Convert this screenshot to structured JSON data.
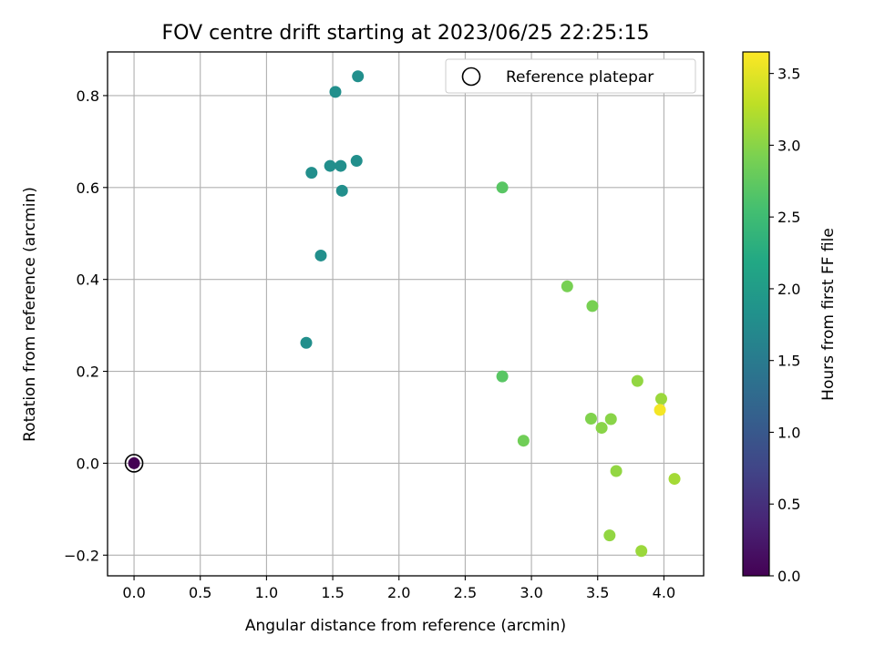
{
  "chart_data": {
    "type": "scatter",
    "title": "FOV centre drift starting at 2023/06/25 22:25:15",
    "xlabel": "Angular distance from reference (arcmin)",
    "ylabel": "Rotation from reference (arcmin)",
    "xlim": [
      -0.2,
      4.3
    ],
    "ylim": [
      -0.245,
      0.895
    ],
    "xticks": [
      0.0,
      0.5,
      1.0,
      1.5,
      2.0,
      2.5,
      3.0,
      3.5,
      4.0
    ],
    "xtick_labels": [
      "0.0",
      "0.5",
      "1.0",
      "1.5",
      "2.0",
      "2.5",
      "3.0",
      "3.5",
      "4.0"
    ],
    "yticks": [
      -0.2,
      0.0,
      0.2,
      0.4,
      0.6,
      0.8
    ],
    "ytick_labels": [
      "−0.2",
      "0.0",
      "0.2",
      "0.4",
      "0.6",
      "0.8"
    ],
    "grid": true,
    "legend": {
      "label": "Reference platepar",
      "placement": "top-right"
    },
    "reference_point": {
      "x": 0.0,
      "y": 0.0
    },
    "colorbar": {
      "label": "Hours from first FF file",
      "colormap": "viridis",
      "range": [
        0.0,
        3.65
      ],
      "ticks": [
        0.0,
        0.5,
        1.0,
        1.5,
        2.0,
        2.5,
        3.0,
        3.5
      ],
      "tick_labels": [
        "0.0",
        "0.5",
        "1.0",
        "1.5",
        "2.0",
        "2.5",
        "3.0",
        "3.5"
      ]
    },
    "points": [
      {
        "x": 0.0,
        "y": 0.0,
        "hours": 0.0
      },
      {
        "x": 1.3,
        "y": 0.262,
        "hours": 1.8
      },
      {
        "x": 1.41,
        "y": 0.452,
        "hours": 1.8
      },
      {
        "x": 1.34,
        "y": 0.632,
        "hours": 1.8
      },
      {
        "x": 1.48,
        "y": 0.647,
        "hours": 1.8
      },
      {
        "x": 1.56,
        "y": 0.647,
        "hours": 1.8
      },
      {
        "x": 1.57,
        "y": 0.593,
        "hours": 1.8
      },
      {
        "x": 1.68,
        "y": 0.658,
        "hours": 1.8
      },
      {
        "x": 1.52,
        "y": 0.808,
        "hours": 1.8
      },
      {
        "x": 1.69,
        "y": 0.842,
        "hours": 1.8
      },
      {
        "x": 2.78,
        "y": 0.6,
        "hours": 2.7
      },
      {
        "x": 2.78,
        "y": 0.189,
        "hours": 2.7
      },
      {
        "x": 2.94,
        "y": 0.049,
        "hours": 2.85
      },
      {
        "x": 3.27,
        "y": 0.385,
        "hours": 2.9
      },
      {
        "x": 3.46,
        "y": 0.342,
        "hours": 2.9
      },
      {
        "x": 3.45,
        "y": 0.097,
        "hours": 2.95
      },
      {
        "x": 3.53,
        "y": 0.077,
        "hours": 3.0
      },
      {
        "x": 3.6,
        "y": 0.096,
        "hours": 3.0
      },
      {
        "x": 3.64,
        "y": -0.017,
        "hours": 3.05
      },
      {
        "x": 3.59,
        "y": -0.157,
        "hours": 3.05
      },
      {
        "x": 3.8,
        "y": 0.179,
        "hours": 3.05
      },
      {
        "x": 3.83,
        "y": -0.191,
        "hours": 3.1
      },
      {
        "x": 3.98,
        "y": 0.14,
        "hours": 3.1
      },
      {
        "x": 3.97,
        "y": 0.116,
        "hours": 3.6
      },
      {
        "x": 4.08,
        "y": -0.034,
        "hours": 3.15
      }
    ]
  }
}
